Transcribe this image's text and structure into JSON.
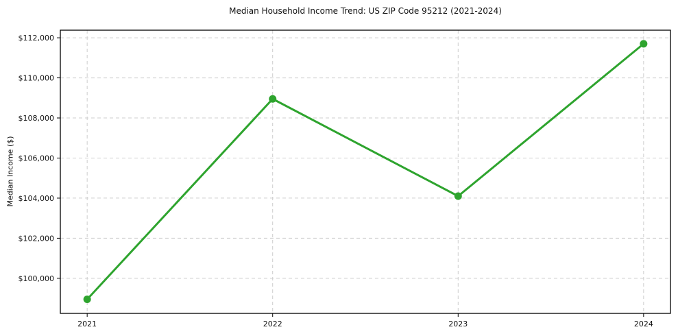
{
  "page": {
    "background_color": "#ffffff",
    "text_color": "#111111"
  },
  "chart_data": {
    "type": "line",
    "title": "Median Household Income Trend: US ZIP Code 95212 (2021-2024)",
    "xlabel": "",
    "ylabel": "Median Income ($)",
    "x": [
      2021,
      2022,
      2023,
      2024
    ],
    "x_tick_labels": [
      "2021",
      "2022",
      "2023",
      "2024"
    ],
    "series": [
      {
        "name": "Median household income",
        "values": [
          98950,
          108950,
          104100,
          111700
        ],
        "color": "#2ea42e",
        "marker": "circle"
      }
    ],
    "y_ticks": [
      100000,
      102000,
      104000,
      106000,
      108000,
      110000,
      112000
    ],
    "y_tick_labels": [
      "$100,000",
      "$102,000",
      "$104,000",
      "$106,000",
      "$108,000",
      "$110,000",
      "$112,000"
    ],
    "ylim": [
      98250,
      112380
    ],
    "grid": true,
    "grid_style": "dashed",
    "grid_color": "#cccccc",
    "axis_color": "#000000",
    "legend": null,
    "legend_position": "none"
  }
}
